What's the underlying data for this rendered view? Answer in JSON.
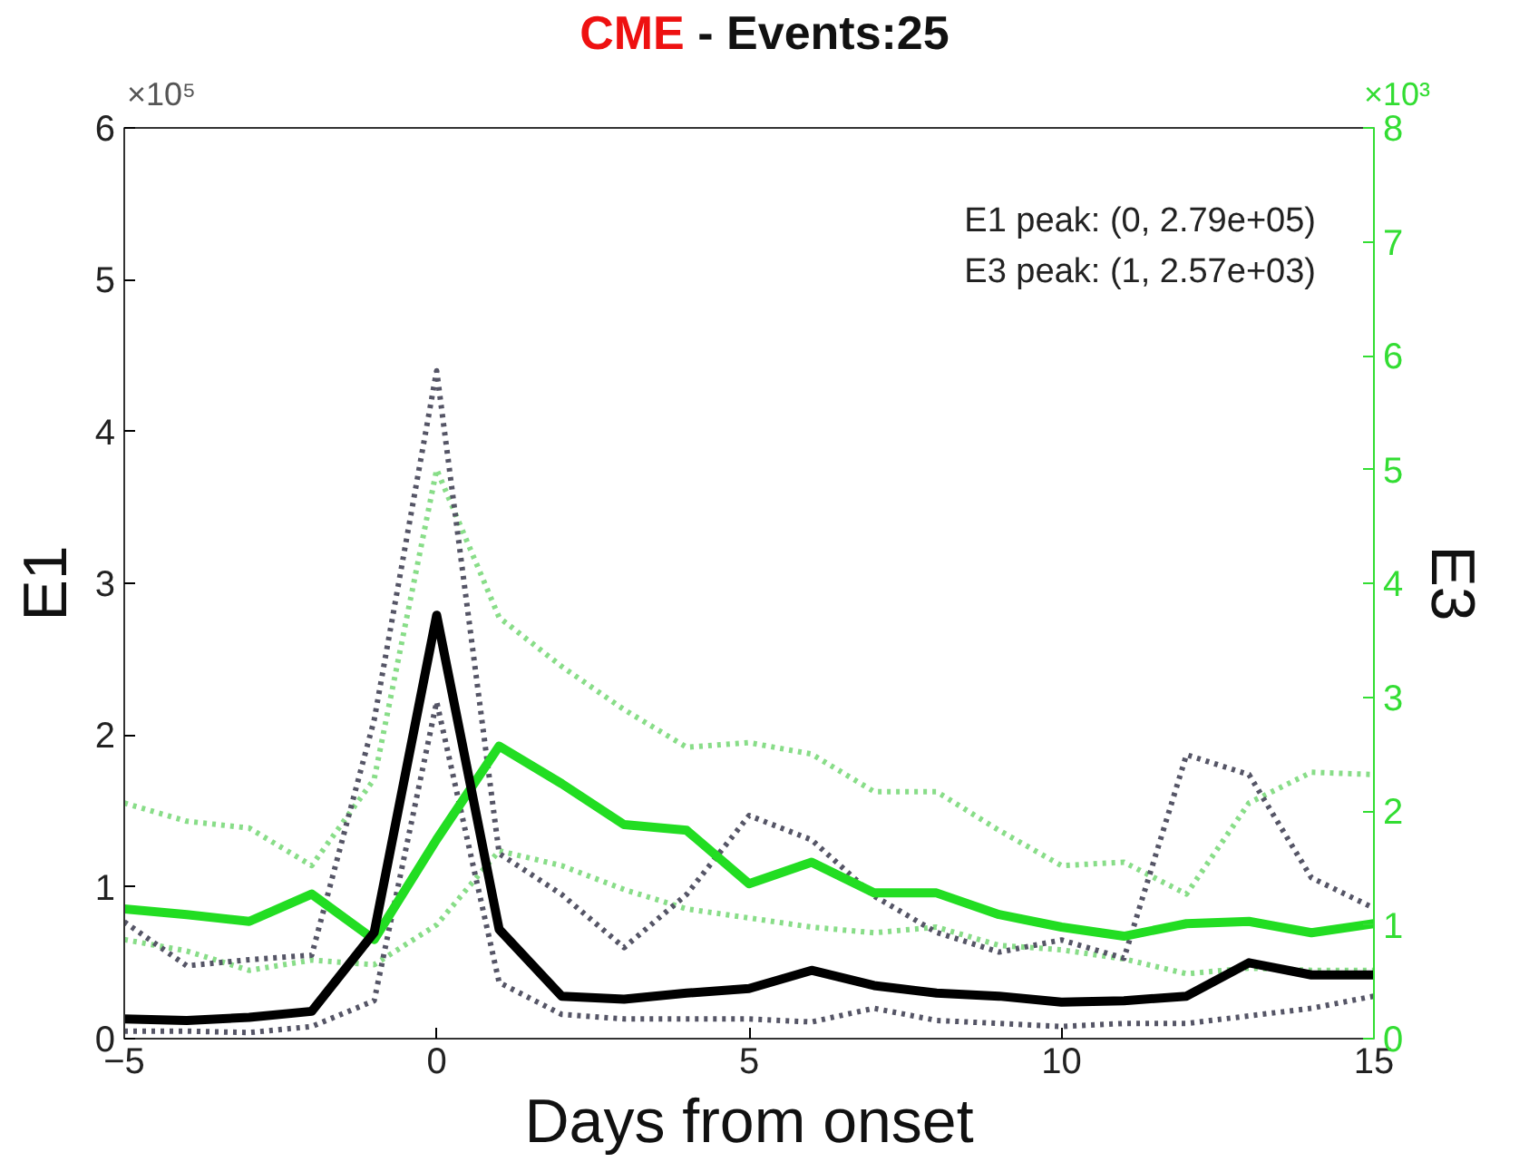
{
  "chart_data": {
    "type": "line",
    "title": "CME - Events:25",
    "xlabel": "Days from onset",
    "ylabel": "E1",
    "y2label": "E3",
    "x": [
      -5,
      -4,
      -3,
      -2,
      -1,
      0,
      1,
      2,
      3,
      4,
      5,
      6,
      7,
      8,
      9,
      10,
      11,
      12,
      13,
      14,
      15
    ],
    "xlim": [
      -5,
      15
    ],
    "xticks": [
      -5,
      0,
      5,
      10,
      15
    ],
    "ylim": [
      0,
      6
    ],
    "yticks": [
      0,
      1,
      2,
      3,
      4,
      5,
      6
    ],
    "y2lim": [
      0,
      8
    ],
    "y2ticks": [
      0,
      1,
      2,
      3,
      4,
      5,
      6,
      7,
      8
    ],
    "grid": false,
    "marker": "none",
    "series": [
      {
        "color": "#88dd88",
        "line_style": "dotted",
        "axis": "y2",
        "values": [
          2.07,
          1.91,
          1.85,
          1.52,
          2.28,
          5.0,
          3.7,
          3.27,
          2.89,
          2.56,
          2.6,
          2.5,
          2.17,
          2.17,
          1.83,
          1.52,
          1.55,
          1.27,
          2.07,
          2.34,
          2.32
        ]
      },
      {
        "color": "#88dd88",
        "line_style": "dotted",
        "axis": "y2",
        "values": [
          0.87,
          0.77,
          0.6,
          0.69,
          0.65,
          1.0,
          1.65,
          1.52,
          1.31,
          1.14,
          1.06,
          0.98,
          0.93,
          0.98,
          0.82,
          0.78,
          0.7,
          0.57,
          0.62,
          0.6,
          0.6
        ]
      },
      {
        "color": "#555566",
        "line_style": "dotted",
        "values": [
          0.77,
          0.48,
          0.52,
          0.55,
          2.1,
          4.4,
          1.22,
          0.95,
          0.6,
          0.95,
          1.47,
          1.31,
          0.94,
          0.7,
          0.57,
          0.65,
          0.53,
          1.87,
          1.74,
          1.06,
          0.86
        ]
      },
      {
        "color": "#555566",
        "line_style": "dotted",
        "values": [
          0.05,
          0.05,
          0.04,
          0.08,
          0.25,
          2.22,
          0.37,
          0.16,
          0.13,
          0.13,
          0.13,
          0.11,
          0.2,
          0.12,
          0.1,
          0.08,
          0.1,
          0.1,
          0.15,
          0.2,
          0.28
        ]
      },
      {
        "color": "#22dd22",
        "line_style": "solid",
        "axis": "y2",
        "values": [
          1.14,
          1.09,
          1.03,
          1.27,
          0.87,
          1.75,
          2.57,
          2.24,
          1.88,
          1.83,
          1.36,
          1.55,
          1.28,
          1.28,
          1.09,
          0.98,
          0.9,
          1.01,
          1.03,
          0.93,
          1.01
        ]
      },
      {
        "color": "#000000",
        "line_style": "solid",
        "values": [
          0.13,
          0.12,
          0.14,
          0.18,
          0.7,
          2.79,
          0.72,
          0.28,
          0.26,
          0.3,
          0.33,
          0.45,
          0.35,
          0.3,
          0.28,
          0.24,
          0.25,
          0.28,
          0.5,
          0.42,
          0.42
        ]
      }
    ],
    "annotations": [
      "×10⁵",
      "×10³",
      "E1 peak: (0, 2.79e+05)",
      "E3 peak: (1, 2.57e+03)"
    ]
  }
}
